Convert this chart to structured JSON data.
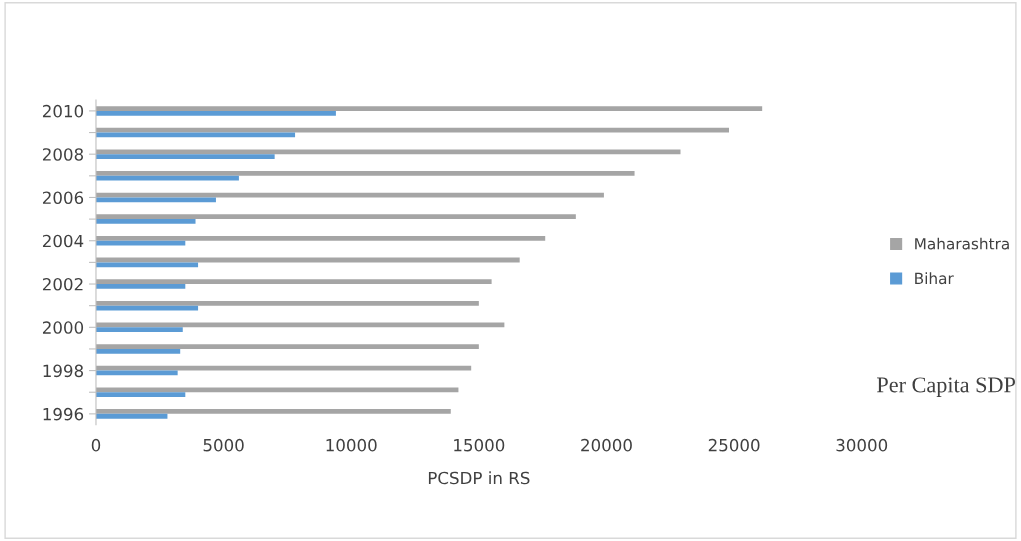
{
  "chart_data": {
    "type": "bar",
    "orientation": "horizontal",
    "xlabel": "PCSDP in RS",
    "categories": [
      "2010",
      null,
      "2008",
      null,
      "2006",
      null,
      "2004",
      null,
      "2002",
      null,
      "2000",
      null,
      "1998",
      null,
      "1996"
    ],
    "series": [
      {
        "name": "Maharashtra",
        "color": "#a5a5a5",
        "values": [
          26100,
          24800,
          22900,
          21100,
          19900,
          18800,
          17600,
          16600,
          15500,
          15000,
          16000,
          15000,
          14700,
          14200,
          13900
        ]
      },
      {
        "name": "Bihar",
        "color": "#5b9bd5",
        "values": [
          9400,
          7800,
          7000,
          5600,
          4700,
          3900,
          3500,
          4000,
          3500,
          4000,
          3400,
          3300,
          3200,
          3500,
          2800
        ]
      }
    ],
    "xlim": [
      0,
      30000
    ],
    "xticks": [
      0,
      5000,
      10000,
      15000,
      20000,
      25000,
      30000
    ],
    "grid": false,
    "legend": "right",
    "annotations": [
      "Per Capita SDP"
    ]
  }
}
